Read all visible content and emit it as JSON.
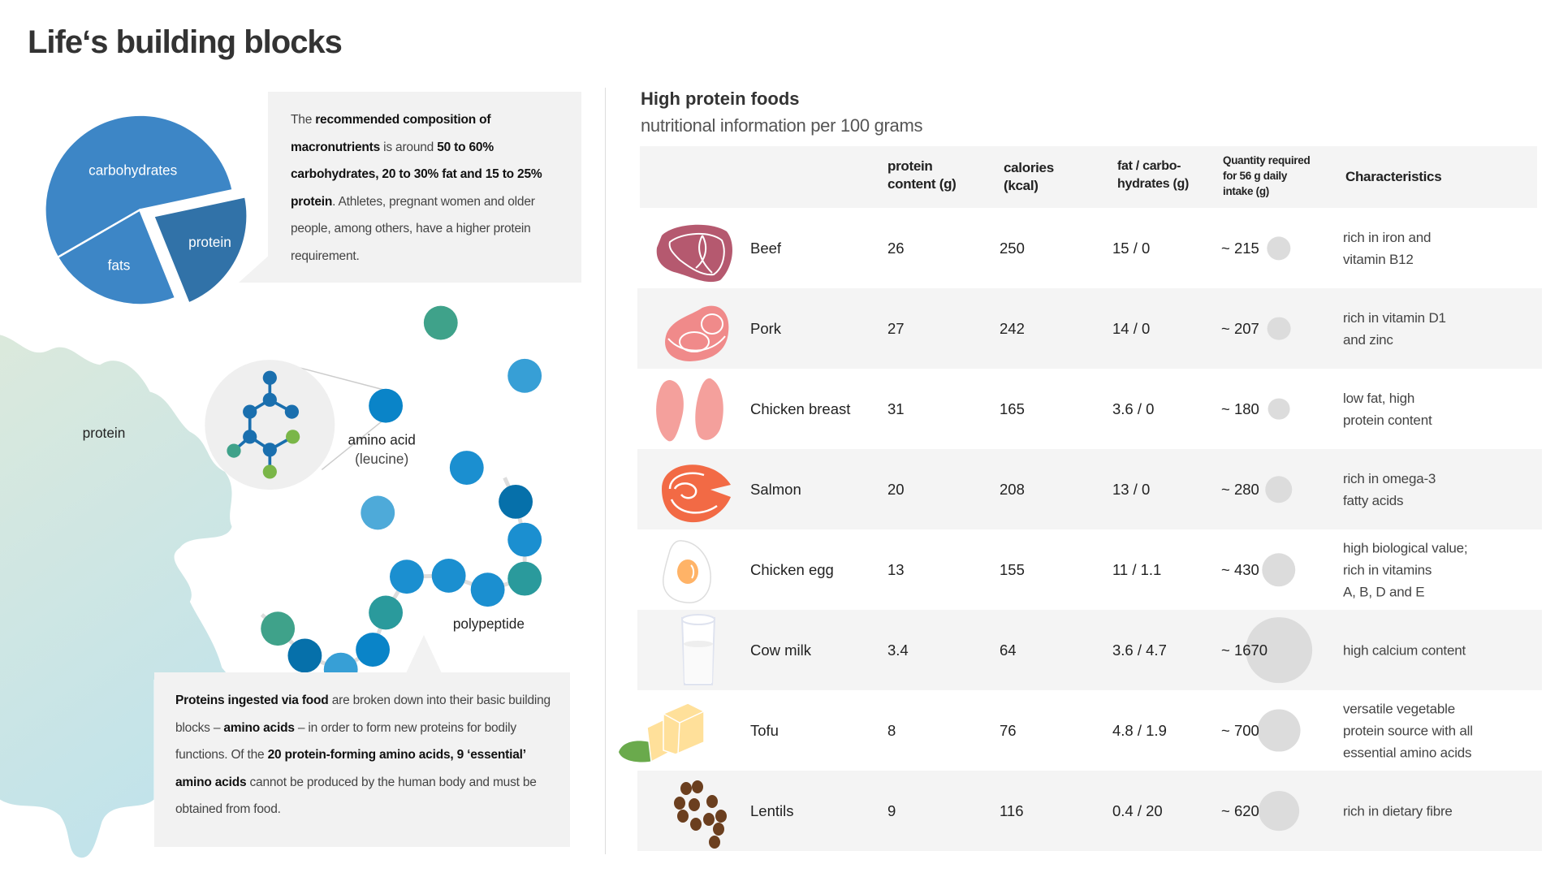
{
  "title": "Life‘s building blocks",
  "pie": {
    "labels": {
      "carbohydrates": "carbohydrates",
      "fats": "fats",
      "protein": "protein"
    },
    "colors": {
      "main": "#3d86c6",
      "protein": "#3172a8"
    }
  },
  "top_text": [
    {
      "t": "The ",
      "b": false
    },
    {
      "t": "recommended composition of macronutrients",
      "b": true
    },
    {
      "t": " is around ",
      "b": false
    },
    {
      "t": "50 to 60% carbohydrates, 20 to 30% fat and 15 to 25% protein",
      "b": true
    },
    {
      "t": ". Athletes, pregnant women and older people, among others, have a higher protein requirement.",
      "b": false
    }
  ],
  "diagram": {
    "protein_label": "protein",
    "amino_acid_label": "amino acid",
    "leucine_label": "(leucine)",
    "polypeptide_label": "polypeptide"
  },
  "bottom_text": [
    {
      "t": "Proteins ingested via food",
      "b": true
    },
    {
      "t": " are broken down into their basic building blocks – ",
      "b": false
    },
    {
      "t": "amino acids",
      "b": true
    },
    {
      "t": " – in order to form new proteins for bodily functions. Of the ",
      "b": false
    },
    {
      "t": "20 protein-forming amino acids, 9 ‘essential’ amino acids",
      "b": true
    },
    {
      "t": " cannot be produced by the human body and must be obtained from food.",
      "b": false
    }
  ],
  "table": {
    "title": "High protein foods",
    "subtitle": "nutritional information per 100 grams",
    "headers": {
      "protein": [
        "protein",
        "content (g)"
      ],
      "calories": [
        "calories",
        "(kcal)"
      ],
      "fat": [
        "fat / carbo-",
        "hydrates (g)"
      ],
      "quantity": [
        "Quantity required",
        "for 56 g daily",
        "intake (g)"
      ],
      "characteristics": "Characteristics"
    },
    "rows": [
      {
        "name": "Beef",
        "icon": "beef-icon",
        "protein": "26",
        "calories": "250",
        "fat_carbs": "15 / 0",
        "quantity": "~ 215",
        "quantity_value": 215,
        "characteristics": [
          "rich in iron and",
          "vitamin B12"
        ]
      },
      {
        "name": "Pork",
        "icon": "pork-icon",
        "protein": "27",
        "calories": "242",
        "fat_carbs": "14 / 0",
        "quantity": "~ 207",
        "quantity_value": 207,
        "characteristics": [
          "rich in vitamin D1",
          "and zinc"
        ]
      },
      {
        "name": "Chicken breast",
        "icon": "chicken-breast-icon",
        "protein": "31",
        "calories": "165",
        "fat_carbs": "3.6 / 0",
        "quantity": "~ 180",
        "quantity_value": 180,
        "characteristics": [
          "low fat, high",
          "protein content"
        ]
      },
      {
        "name": "Salmon",
        "icon": "salmon-icon",
        "protein": "20",
        "calories": "208",
        "fat_carbs": "13 / 0",
        "quantity": "~ 280",
        "quantity_value": 280,
        "characteristics": [
          "rich in omega-3",
          "fatty acids"
        ]
      },
      {
        "name": "Chicken egg",
        "icon": "egg-icon",
        "protein": "13",
        "calories": "155",
        "fat_carbs": "11 / 1.1",
        "quantity": "~ 430",
        "quantity_value": 430,
        "characteristics": [
          "high biological value;",
          "rich in vitamins",
          "A, B, D and E"
        ]
      },
      {
        "name": "Cow milk",
        "icon": "milk-glass-icon",
        "protein": "3.4",
        "calories": "64",
        "fat_carbs": "3.6 / 4.7",
        "quantity": "~ 1670",
        "quantity_value": 1670,
        "characteristics": [
          "high calcium content"
        ]
      },
      {
        "name": "Tofu",
        "icon": "tofu-icon",
        "protein": "8",
        "calories": "76",
        "fat_carbs": "4.8 / 1.9",
        "quantity": "~ 700",
        "quantity_value": 700,
        "characteristics": [
          "versatile vegetable",
          "protein source with all",
          "essential amino acids"
        ]
      },
      {
        "name": "Lentils",
        "icon": "lentils-icon",
        "protein": "9",
        "calories": "116",
        "fat_carbs": "0.4 / 20",
        "quantity": "~ 620",
        "quantity_value": 620,
        "characteristics": [
          "rich in dietary fibre"
        ]
      }
    ]
  }
}
